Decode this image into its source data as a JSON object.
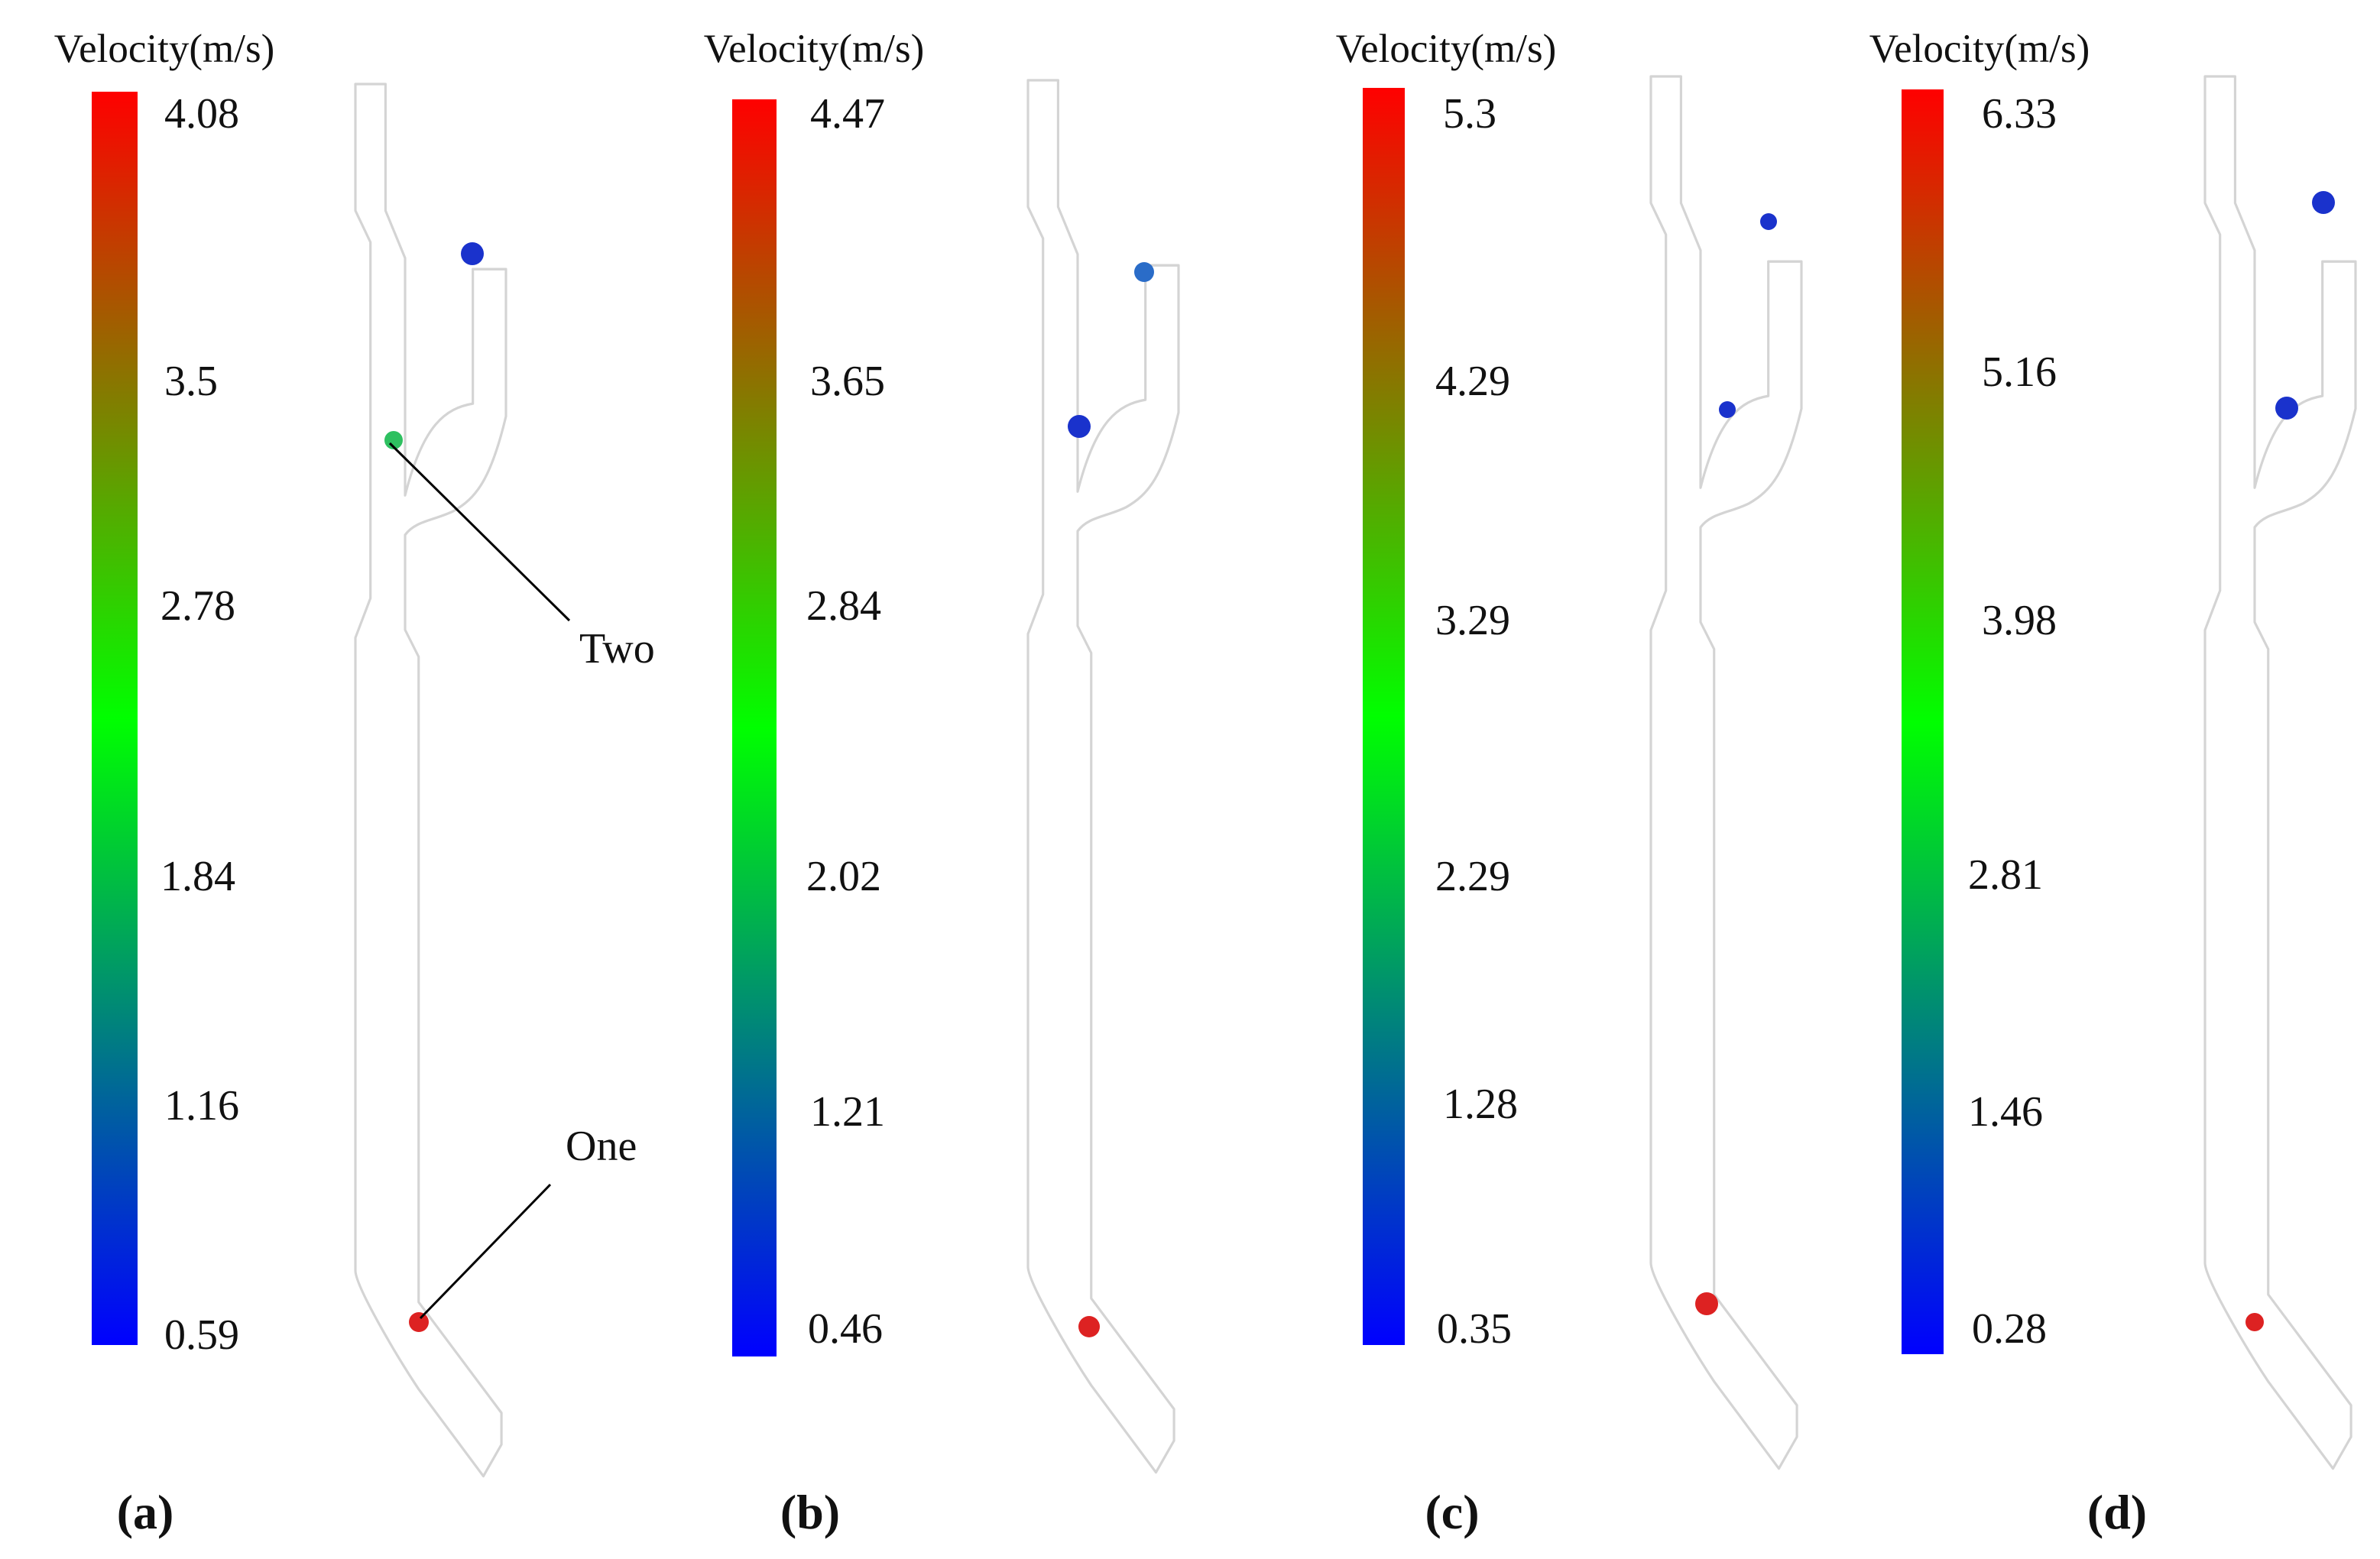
{
  "figure": {
    "colorbar_title": "Velocity(m/s)",
    "colormap": [
      "#0000ff",
      "#00ff00",
      "#ff0000"
    ],
    "pipe_fill": "#ffffff",
    "pipe_stroke": "#d4d4d4",
    "leader_color": "#000000",
    "panels": [
      {
        "label": "(a)",
        "ticks": [
          "4.08",
          "3.5",
          "2.78",
          "1.84",
          "1.16",
          "0.59"
        ],
        "annotations": [
          "Two",
          "One"
        ],
        "particles": [
          {
            "name": "one",
            "color": "#dd2222"
          },
          {
            "name": "two",
            "color": "#2ec060"
          },
          {
            "name": "upper",
            "color": "#1a32cc"
          }
        ]
      },
      {
        "label": "(b)",
        "ticks": [
          "4.47",
          "3.65",
          "2.84",
          "2.02",
          "1.21",
          "0.46"
        ],
        "annotations": [],
        "particles": [
          {
            "name": "one",
            "color": "#dd2222"
          },
          {
            "name": "two",
            "color": "#1a32cc"
          },
          {
            "name": "upper",
            "color": "#2a6cc8"
          }
        ]
      },
      {
        "label": "(c)",
        "ticks": [
          "5.3",
          "4.29",
          "3.29",
          "2.29",
          "1.28",
          "0.35"
        ],
        "annotations": [],
        "particles": [
          {
            "name": "one",
            "color": "#dd2222"
          },
          {
            "name": "two",
            "color": "#1a32cc"
          },
          {
            "name": "upper",
            "color": "#1a32cc"
          }
        ]
      },
      {
        "label": "(d)",
        "ticks": [
          "6.33",
          "5.16",
          "3.98",
          "2.81",
          "1.46",
          "0.28"
        ],
        "annotations": [],
        "particles": [
          {
            "name": "one",
            "color": "#dd2222"
          },
          {
            "name": "two",
            "color": "#1a32cc"
          },
          {
            "name": "upper",
            "color": "#1a32cc"
          }
        ]
      }
    ]
  }
}
